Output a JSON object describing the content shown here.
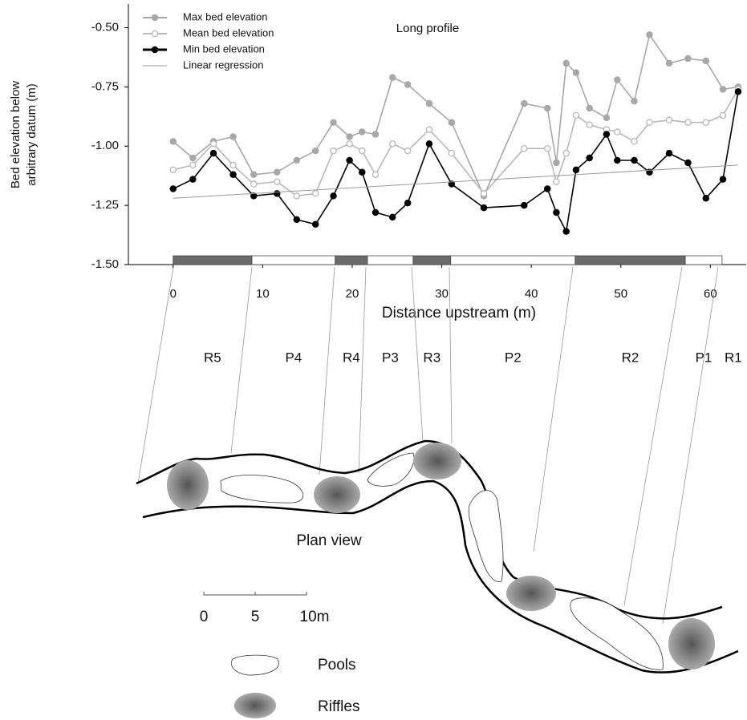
{
  "chart_data": {
    "type": "line",
    "title": "Long profile",
    "ylabel": [
      "Bed elevation below",
      "arbitrary datum (m)"
    ],
    "xlabel": "Distance upstream (m)",
    "xlim": [
      -5,
      64
    ],
    "xticks": [
      0,
      10,
      20,
      30,
      40,
      50,
      60
    ],
    "ylim": [
      -1.5,
      -0.4
    ],
    "yticks": [
      {
        "value": -1.5,
        "label": "-1.50"
      },
      -1.25,
      {
        "value": -1,
        "label": "-1.00"
      },
      -0.75,
      {
        "value": -0.5,
        "label": "-0.50"
      }
    ],
    "legend": "upper left",
    "x": [
      0,
      2.2,
      4.5,
      6.7,
      9.0,
      11.6,
      13.8,
      15.9,
      17.9,
      19.7,
      21.1,
      22.6,
      24.5,
      26.2,
      28.6,
      31.1,
      34.7,
      39.2,
      41.8,
      42.8,
      43.9,
      45.0,
      46.5,
      48.4,
      49.6,
      51.5,
      53.2,
      55.4,
      57.5,
      59.5,
      61.4,
      63.1
    ],
    "series": [
      {
        "name": "Max bed elevation",
        "color": "#a8a8a8",
        "marker": "filled",
        "values": [
          -0.98,
          -1.05,
          -0.98,
          -0.96,
          -1.12,
          -1.11,
          -1.06,
          -1.02,
          -0.9,
          -0.96,
          -0.94,
          -0.95,
          -0.71,
          -0.74,
          -0.82,
          -0.9,
          -1.21,
          -0.82,
          -0.84,
          -1.07,
          -0.65,
          -0.69,
          -0.84,
          -0.88,
          -0.72,
          -0.81,
          -0.53,
          -0.65,
          -0.63,
          -0.64,
          -0.76,
          -0.75
        ]
      },
      {
        "name": "Mean bed elevation",
        "color": "#b8b8b8",
        "marker": "open",
        "values": [
          -1.1,
          -1.08,
          -0.99,
          -1.08,
          -1.16,
          -1.15,
          -1.21,
          -1.2,
          -1.02,
          -0.99,
          -1.02,
          -1.12,
          -0.99,
          -1.02,
          -0.93,
          -1.03,
          -1.2,
          -1.01,
          -1.01,
          -1.15,
          -1.03,
          -0.87,
          -0.91,
          -0.93,
          -0.94,
          -0.98,
          -0.9,
          -0.89,
          -0.9,
          -0.9,
          -0.87,
          -0.76
        ]
      },
      {
        "name": "Min bed elevation",
        "color": "#000000",
        "marker": "filled",
        "values": [
          -1.18,
          -1.14,
          -1.03,
          -1.12,
          -1.21,
          -1.2,
          -1.31,
          -1.33,
          -1.21,
          -1.06,
          -1.11,
          -1.28,
          -1.3,
          -1.24,
          -0.99,
          -1.16,
          -1.26,
          -1.25,
          -1.18,
          -1.28,
          -1.36,
          -1.1,
          -1.05,
          -0.95,
          -1.06,
          -1.06,
          -1.11,
          -1.03,
          -1.07,
          -1.22,
          -1.14,
          -0.77
        ]
      },
      {
        "name": "Linear regression",
        "color": "#999999",
        "marker": "none",
        "x": [
          0,
          63.1
        ],
        "values": [
          -1.22,
          -1.08
        ]
      }
    ],
    "reaches": [
      {
        "label": "R5",
        "kind": "riffle",
        "start": 0,
        "end": 8.8
      },
      {
        "label": "P4",
        "kind": "pool",
        "start": 8.8,
        "end": 18.1
      },
      {
        "label": "R4",
        "kind": "riffle",
        "start": 18.1,
        "end": 21.7
      },
      {
        "label": "P3",
        "kind": "pool",
        "start": 21.7,
        "end": 26.8
      },
      {
        "label": "R3",
        "kind": "riffle",
        "start": 26.8,
        "end": 31.0
      },
      {
        "label": "P2",
        "kind": "pool",
        "start": 31.0,
        "end": 44.9
      },
      {
        "label": "R2",
        "kind": "riffle",
        "start": 44.9,
        "end": 57.2
      },
      {
        "label": "P1",
        "kind": "pool",
        "start": 57.2,
        "end": 61.3
      },
      {
        "label": "R1",
        "kind": "riffle",
        "start": 61.3
      }
    ]
  },
  "plan_view": {
    "title": "Plan view",
    "scale_labels": [
      "0",
      "5",
      "10m"
    ],
    "legend": {
      "pools": "Pools",
      "riffles": "Riffles"
    }
  }
}
